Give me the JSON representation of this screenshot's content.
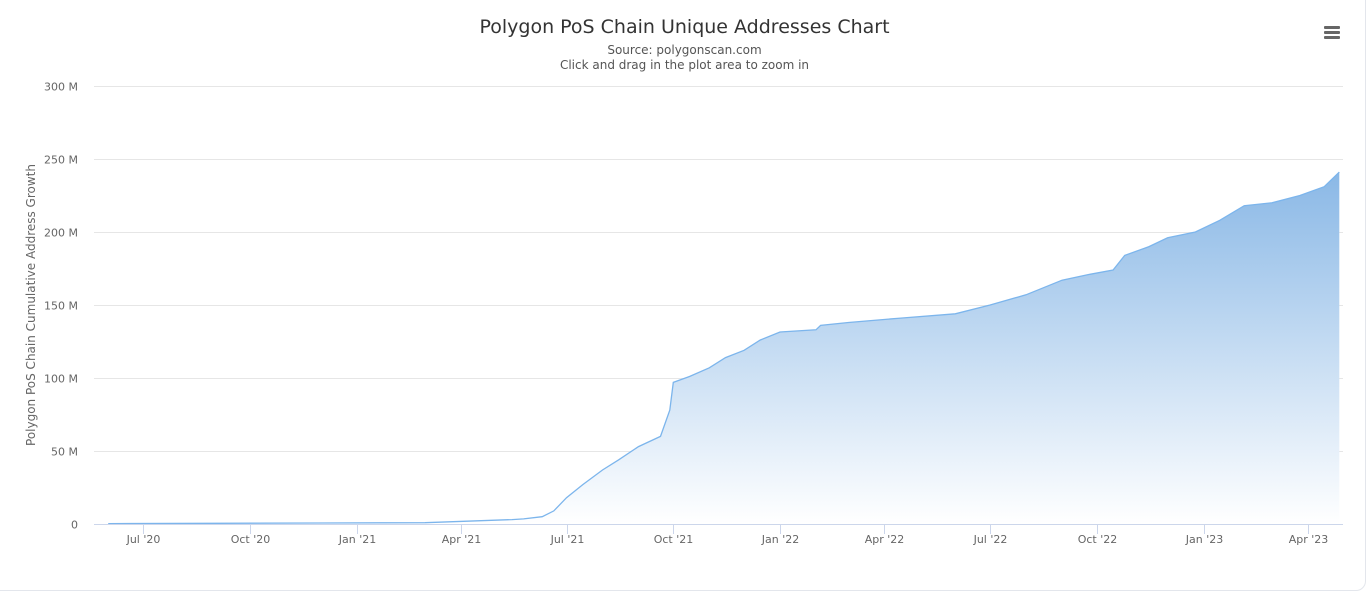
{
  "header": {
    "title": "Polygon PoS Chain Unique Addresses Chart",
    "source": "Source: polygonscan.com",
    "hint": "Click and drag in the plot area to zoom in",
    "menu_icon": "hamburger-menu-icon"
  },
  "axes": {
    "y_label": "Polygon PoS Chain Cumulative Address Growth",
    "y_ticks": [
      "0",
      "50 M",
      "100 M",
      "150 M",
      "200 M",
      "250 M",
      "300 M"
    ],
    "x_ticks": [
      "Jul '20",
      "Oct '20",
      "Jan '21",
      "Apr '21",
      "Jul '21",
      "Oct '21",
      "Jan '22",
      "Apr '22",
      "Jul '22",
      "Oct '22",
      "Jan '23",
      "Apr '23"
    ]
  },
  "colors": {
    "series_line": "#7cb5ec",
    "fill_top": "#8ab8e6",
    "fill_bottom": "#ffffff",
    "grid": "#e6e6e6",
    "axis_line": "#ccd6eb"
  },
  "chart_data": {
    "type": "area",
    "title": "Polygon PoS Chain Unique Addresses Chart",
    "subtitle": "Source: polygonscan.com",
    "xlabel": "",
    "ylabel": "Polygon PoS Chain Cumulative Address Growth",
    "ylim": [
      0,
      300000000
    ],
    "y_tick_values": [
      0,
      50000000,
      100000000,
      150000000,
      200000000,
      250000000,
      300000000
    ],
    "x_tick_labels": [
      "Jul '20",
      "Oct '20",
      "Jan '21",
      "Apr '21",
      "Jul '21",
      "Oct '21",
      "Jan '22",
      "Apr '22",
      "Jul '22",
      "Oct '22",
      "Jan '23",
      "Apr '23"
    ],
    "grid": true,
    "legend": "none",
    "series": [
      {
        "name": "Polygon PoS Chain Cumulative Address Growth",
        "unit": "M",
        "x": [
          "2020-06-01",
          "2020-09-01",
          "2020-12-01",
          "2021-03-01",
          "2021-05-15",
          "2021-05-25",
          "2021-06-10",
          "2021-06-20",
          "2021-07-01",
          "2021-07-15",
          "2021-08-01",
          "2021-08-15",
          "2021-09-01",
          "2021-09-20",
          "2021-09-28",
          "2021-10-01",
          "2021-10-15",
          "2021-11-01",
          "2021-11-15",
          "2021-12-01",
          "2021-12-15",
          "2022-01-01",
          "2022-02-01",
          "2022-02-05",
          "2022-03-01",
          "2022-04-15",
          "2022-06-01",
          "2022-07-01",
          "2022-08-01",
          "2022-09-01",
          "2022-09-25",
          "2022-10-15",
          "2022-10-25",
          "2022-11-15",
          "2022-12-01",
          "2022-12-25",
          "2023-01-15",
          "2023-02-05",
          "2023-03-01",
          "2023-03-25",
          "2023-04-15",
          "2023-04-28"
        ],
        "values": [
          0.3,
          0.5,
          0.7,
          0.9,
          3,
          3.5,
          5,
          9,
          18,
          27,
          37,
          44,
          53,
          60,
          78,
          97,
          101,
          107,
          114,
          119,
          126,
          131.5,
          133,
          136,
          138,
          141,
          144,
          150,
          157,
          167,
          171,
          174,
          184,
          190,
          196,
          200,
          208,
          218,
          220,
          225,
          231,
          241
        ]
      }
    ]
  }
}
